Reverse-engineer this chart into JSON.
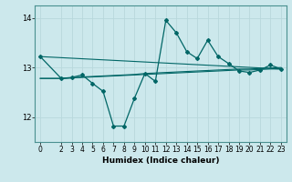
{
  "xlabel": "Humidex (Indice chaleur)",
  "xlim": [
    -0.5,
    23.5
  ],
  "ylim": [
    11.5,
    14.25
  ],
  "yticks": [
    12,
    13,
    14
  ],
  "xticks": [
    0,
    2,
    3,
    4,
    5,
    6,
    7,
    8,
    9,
    10,
    11,
    12,
    13,
    14,
    15,
    16,
    17,
    18,
    19,
    20,
    21,
    22,
    23
  ],
  "background_color": "#cce8ec",
  "grid_color": "#b8d8dc",
  "line_color": "#006666",
  "main_line": {
    "x": [
      0,
      2,
      3,
      4,
      5,
      6,
      7,
      8,
      9,
      10,
      11,
      12,
      13,
      14,
      15,
      16,
      17,
      18,
      19,
      20,
      21,
      22,
      23
    ],
    "y": [
      13.22,
      12.78,
      12.8,
      12.85,
      12.68,
      12.52,
      11.82,
      11.82,
      12.38,
      12.88,
      12.72,
      13.95,
      13.7,
      13.32,
      13.18,
      13.55,
      13.22,
      13.08,
      12.93,
      12.9,
      12.95,
      13.05,
      12.97
    ]
  },
  "trend_line": {
    "x": [
      0,
      23
    ],
    "y": [
      13.22,
      12.97
    ]
  },
  "smooth_line1": {
    "x": [
      0,
      2,
      3,
      4,
      5,
      6,
      7,
      8,
      9,
      10,
      11,
      12,
      13,
      14,
      15,
      16,
      17,
      18,
      19,
      20,
      21,
      22,
      23
    ],
    "y": [
      12.78,
      12.78,
      12.79,
      12.8,
      12.81,
      12.82,
      12.83,
      12.84,
      12.85,
      12.86,
      12.87,
      12.88,
      12.89,
      12.9,
      12.91,
      12.92,
      12.93,
      12.94,
      12.95,
      12.95,
      12.96,
      12.97,
      12.97
    ]
  },
  "smooth_line2": {
    "x": [
      0,
      2,
      3,
      4,
      5,
      6,
      7,
      8,
      9,
      10,
      11,
      12,
      13,
      14,
      15,
      16,
      17,
      18,
      19,
      20,
      21,
      22,
      23
    ],
    "y": [
      12.78,
      12.78,
      12.79,
      12.81,
      12.82,
      12.83,
      12.84,
      12.85,
      12.86,
      12.88,
      12.89,
      12.9,
      12.91,
      12.92,
      12.93,
      12.94,
      12.95,
      12.96,
      12.97,
      12.97,
      12.98,
      12.99,
      13.0
    ]
  }
}
